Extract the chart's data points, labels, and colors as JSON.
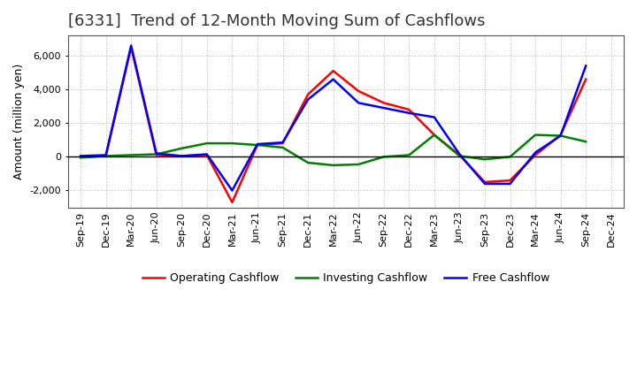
{
  "title": "[6331]  Trend of 12-Month Moving Sum of Cashflows",
  "ylabel": "Amount (million yen)",
  "x_labels": [
    "Sep-19",
    "Dec-19",
    "Mar-20",
    "Jun-20",
    "Sep-20",
    "Dec-20",
    "Mar-21",
    "Jun-21",
    "Sep-21",
    "Dec-21",
    "Mar-22",
    "Jun-22",
    "Sep-22",
    "Dec-22",
    "Mar-23",
    "Jun-23",
    "Sep-23",
    "Dec-23",
    "Mar-24",
    "Jun-24",
    "Sep-24",
    "Dec-24"
  ],
  "operating_cashflow": [
    0,
    50,
    6500,
    100,
    50,
    100,
    -2700,
    700,
    800,
    3700,
    5100,
    3900,
    3200,
    2800,
    1300,
    100,
    -1500,
    -1400,
    100,
    1300,
    4600,
    null
  ],
  "investing_cashflow": [
    -50,
    50,
    100,
    150,
    500,
    800,
    800,
    700,
    550,
    -350,
    -500,
    -450,
    0,
    100,
    1300,
    50,
    -150,
    0,
    1300,
    1250,
    900,
    null
  ],
  "free_cashflow": [
    50,
    100,
    6600,
    200,
    50,
    150,
    -2000,
    750,
    850,
    3400,
    4600,
    3200,
    2900,
    2600,
    2350,
    150,
    -1600,
    -1600,
    250,
    1250,
    5400,
    null
  ],
  "operating_color": "#ff0000",
  "investing_color": "#008000",
  "free_color": "#0000ff",
  "ylim": [
    -3000,
    7200
  ],
  "yticks": [
    -2000,
    0,
    2000,
    4000,
    6000
  ],
  "bg_color": "#ffffff",
  "plot_bg_color": "#ffffff",
  "grid_color": "#bbbbbb",
  "title_fontsize": 13,
  "label_fontsize": 9,
  "tick_fontsize": 8,
  "legend_fontsize": 9,
  "line_width": 1.8
}
